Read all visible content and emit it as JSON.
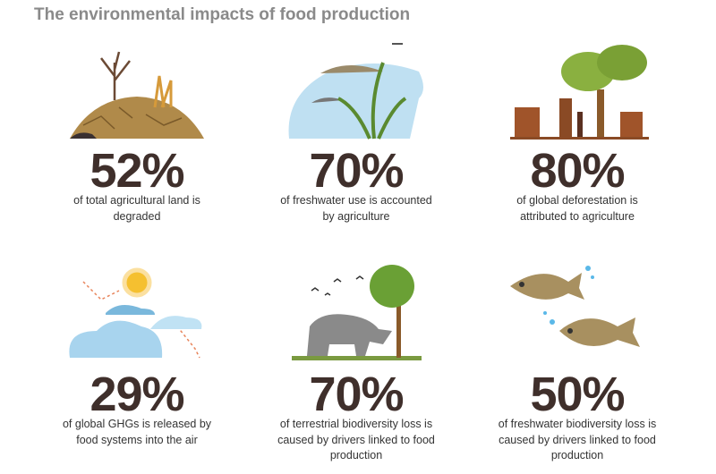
{
  "header": {
    "title": "The environmental impacts of food production"
  },
  "items": [
    {
      "stat": "52%",
      "lines": [
        "of total agricultural land is",
        "degraded"
      ]
    },
    {
      "stat": "70%",
      "lines": [
        "of freshwater use is accounted",
        "by agriculture"
      ]
    },
    {
      "stat": "80%",
      "lines": [
        "of global deforestation is",
        "attributed to agriculture"
      ]
    },
    {
      "stat": "29%",
      "lines": [
        "of global GHGs is released by",
        "food systems into the air"
      ]
    },
    {
      "stat": "70%",
      "lines": [
        "of terrestrial biodiversity loss is",
        "caused by drivers linked to food",
        "production"
      ]
    },
    {
      "stat": "50%",
      "lines": [
        "of freshwater biodiversity loss is",
        "caused by drivers linked to food",
        "production"
      ]
    }
  ]
}
